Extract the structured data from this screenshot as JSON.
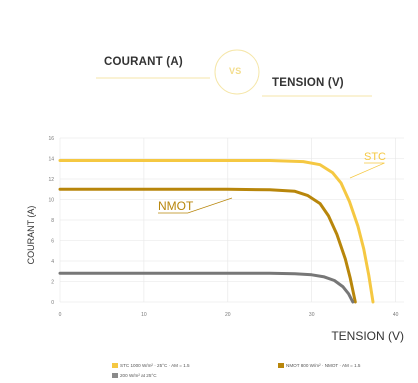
{
  "header": {
    "left_label": "COURANT (A)",
    "vs_label": "VS",
    "right_label": "TENSION (V)"
  },
  "legend": [
    {
      "label": "STC 1000 W/m² · 25°C · AM = 1.5",
      "color": "#f5c842"
    },
    {
      "label": "NMOT 800 W/m² · NMOT · AM = 1.5",
      "color": "#b8860b"
    },
    {
      "label": "200 W/m² at 25°C",
      "color": "#8a8a8a"
    }
  ],
  "chart_data": {
    "type": "line",
    "xlabel": "TENSION (V)",
    "ylabel": "COURANT (A)",
    "xlim": [
      0,
      41
    ],
    "ylim": [
      0,
      16
    ],
    "x_ticks": [
      0,
      10,
      20,
      30,
      40
    ],
    "y_ticks": [
      0,
      2,
      4,
      6,
      8,
      10,
      12,
      14,
      16
    ],
    "grid": true,
    "series": [
      {
        "name": "STC",
        "color": "#f5c842",
        "points": [
          [
            0,
            13.8
          ],
          [
            5,
            13.8
          ],
          [
            10,
            13.8
          ],
          [
            15,
            13.8
          ],
          [
            20,
            13.8
          ],
          [
            25,
            13.8
          ],
          [
            29,
            13.7
          ],
          [
            31,
            13.4
          ],
          [
            32.5,
            12.6
          ],
          [
            33.5,
            11.6
          ],
          [
            34.5,
            9.8
          ],
          [
            35.5,
            7.4
          ],
          [
            36.2,
            5.2
          ],
          [
            36.8,
            2.6
          ],
          [
            37.3,
            0
          ]
        ]
      },
      {
        "name": "NMOT",
        "color": "#b8860b",
        "points": [
          [
            0,
            11
          ],
          [
            5,
            11
          ],
          [
            10,
            11
          ],
          [
            15,
            11
          ],
          [
            20,
            11
          ],
          [
            25,
            10.95
          ],
          [
            28,
            10.8
          ],
          [
            29.5,
            10.4
          ],
          [
            31,
            9.6
          ],
          [
            32,
            8.4
          ],
          [
            33,
            6.6
          ],
          [
            34,
            4.2
          ],
          [
            34.6,
            2.3
          ],
          [
            35.2,
            0
          ]
        ]
      },
      {
        "name": "200 W/m²",
        "color": "#777777",
        "points": [
          [
            0,
            2.8
          ],
          [
            5,
            2.8
          ],
          [
            10,
            2.8
          ],
          [
            15,
            2.8
          ],
          [
            20,
            2.8
          ],
          [
            25,
            2.8
          ],
          [
            28,
            2.75
          ],
          [
            30,
            2.65
          ],
          [
            31.5,
            2.45
          ],
          [
            32.7,
            2.1
          ],
          [
            33.7,
            1.5
          ],
          [
            34.4,
            0.8
          ],
          [
            34.9,
            0
          ]
        ]
      }
    ],
    "annotations": [
      {
        "text": "STC",
        "series": "STC"
      },
      {
        "text": "NMOT",
        "series": "NMOT"
      }
    ]
  }
}
